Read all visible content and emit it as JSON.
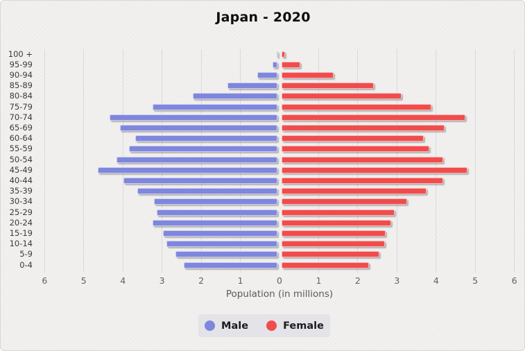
{
  "chart_data": {
    "type": "bar",
    "variant": "population-pyramid",
    "title": "Japan - 2020",
    "xlabel": "Population (in millions)",
    "x_ticks": [
      "6",
      "5",
      "4",
      "3",
      "2",
      "1",
      "0",
      "1",
      "2",
      "3",
      "4",
      "5",
      "6"
    ],
    "x_max_each_side": 6,
    "grid": true,
    "legend_position": "bottom",
    "age_groups": [
      "100 +",
      "95-99",
      "90-94",
      "85-89",
      "80-84",
      "75-79",
      "70-74",
      "65-69",
      "60-64",
      "55-59",
      "50-54",
      "45-49",
      "40-44",
      "35-39",
      "30-34",
      "25-29",
      "20-24",
      "15-19",
      "10-14",
      "5-9",
      "0-4"
    ],
    "series": [
      {
        "name": "Male",
        "color": "#7e86dd",
        "values": [
          0.02,
          0.13,
          0.52,
          1.28,
          2.17,
          3.19,
          4.3,
          4.03,
          3.64,
          3.8,
          4.12,
          4.6,
          3.95,
          3.58,
          3.16,
          3.1,
          3.19,
          2.94,
          2.84,
          2.62,
          2.4
        ]
      },
      {
        "name": "Female",
        "color": "#f14c4c",
        "values": [
          0.1,
          0.48,
          1.34,
          2.36,
          3.07,
          3.83,
          4.7,
          4.17,
          3.64,
          3.78,
          4.13,
          4.75,
          4.13,
          3.72,
          3.21,
          2.89,
          2.8,
          2.67,
          2.65,
          2.51,
          2.24
        ]
      }
    ]
  }
}
